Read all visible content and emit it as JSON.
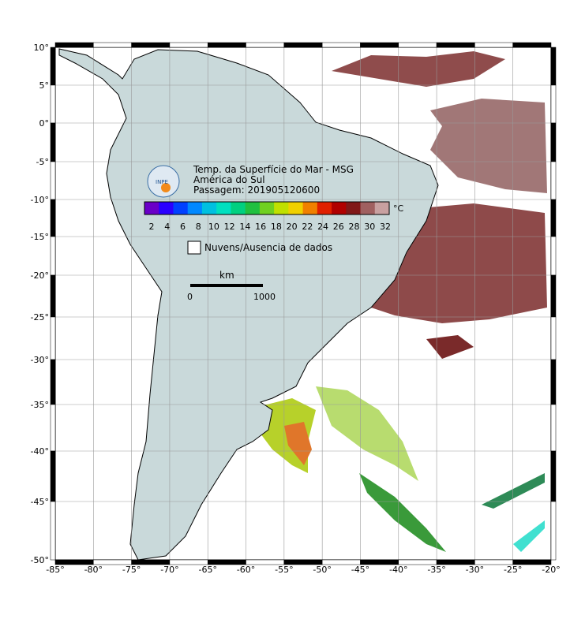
{
  "map": {
    "title_lines": [
      "Temp. da Superfície do Mar - MSG",
      "América do Sul",
      "Passagem: 201905120600"
    ],
    "logo_text": "INPE",
    "colorbar": {
      "ticks": [
        "2",
        "4",
        "6",
        "8",
        "10",
        "12",
        "14",
        "16",
        "18",
        "20",
        "22",
        "24",
        "26",
        "28",
        "30",
        "32"
      ],
      "unit": "°C"
    },
    "legend_label": "Nuvens/Ausencia de dados",
    "scale": {
      "unit": "km",
      "ticks": [
        "0",
        "1000"
      ]
    },
    "lon_ticks": [
      "-85°",
      "-80°",
      "-75°",
      "-70°",
      "-65°",
      "-60°",
      "-55°",
      "-50°",
      "-45°",
      "-40°",
      "-35°",
      "-30°",
      "-25°",
      "-20°"
    ],
    "lat_ticks": [
      "10°",
      "5°",
      "0°",
      "-5°",
      "-10°",
      "-15°",
      "-20°",
      "-25°",
      "-30°",
      "-35°",
      "-40°",
      "-45°",
      "-50°"
    ]
  }
}
